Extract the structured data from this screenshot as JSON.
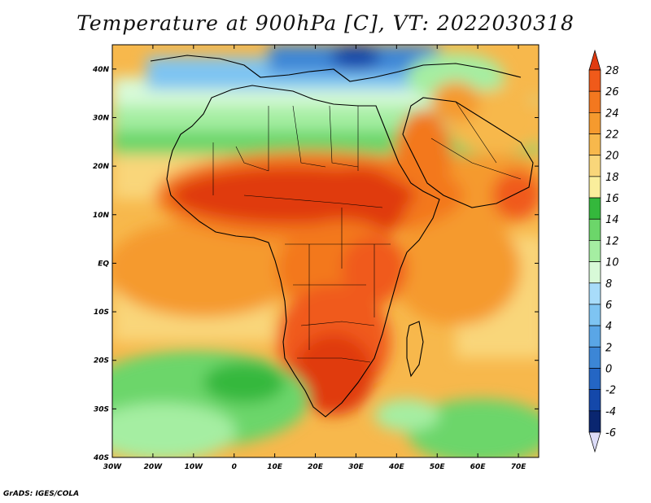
{
  "title": "Temperature at 900hPa [C], VT: 2022030318",
  "credit": "GrADS: IGES/COLA",
  "map": {
    "region": "Africa",
    "lon_range": [
      -30,
      75
    ],
    "lat_range": [
      -40,
      45
    ],
    "lon_ticks": [
      "30W",
      "20W",
      "10W",
      "0",
      "10E",
      "20E",
      "30E",
      "40E",
      "50E",
      "60E",
      "70E"
    ],
    "lat_ticks": [
      "40N",
      "30N",
      "20N",
      "10N",
      "EQ",
      "10S",
      "20S",
      "30S",
      "40S"
    ]
  },
  "colorbar": {
    "labels": [
      "28",
      "26",
      "24",
      "22",
      "20",
      "18",
      "16",
      "14",
      "12",
      "10",
      "8",
      "6",
      "4",
      "2",
      "0",
      "-2",
      "-4",
      "-6"
    ],
    "colors": [
      "#e03a10",
      "#f05a1a",
      "#f3781f",
      "#f59a2e",
      "#f7b84c",
      "#f9d67a",
      "#faee9c",
      "#34b83c",
      "#6cd66a",
      "#a5eea2",
      "#d8fad8",
      "#a8dcfa",
      "#7ec4f2",
      "#5aa6e6",
      "#3c86d6",
      "#2466c4",
      "#1448aa",
      "#0a2670",
      "#dcdcf8"
    ]
  }
}
